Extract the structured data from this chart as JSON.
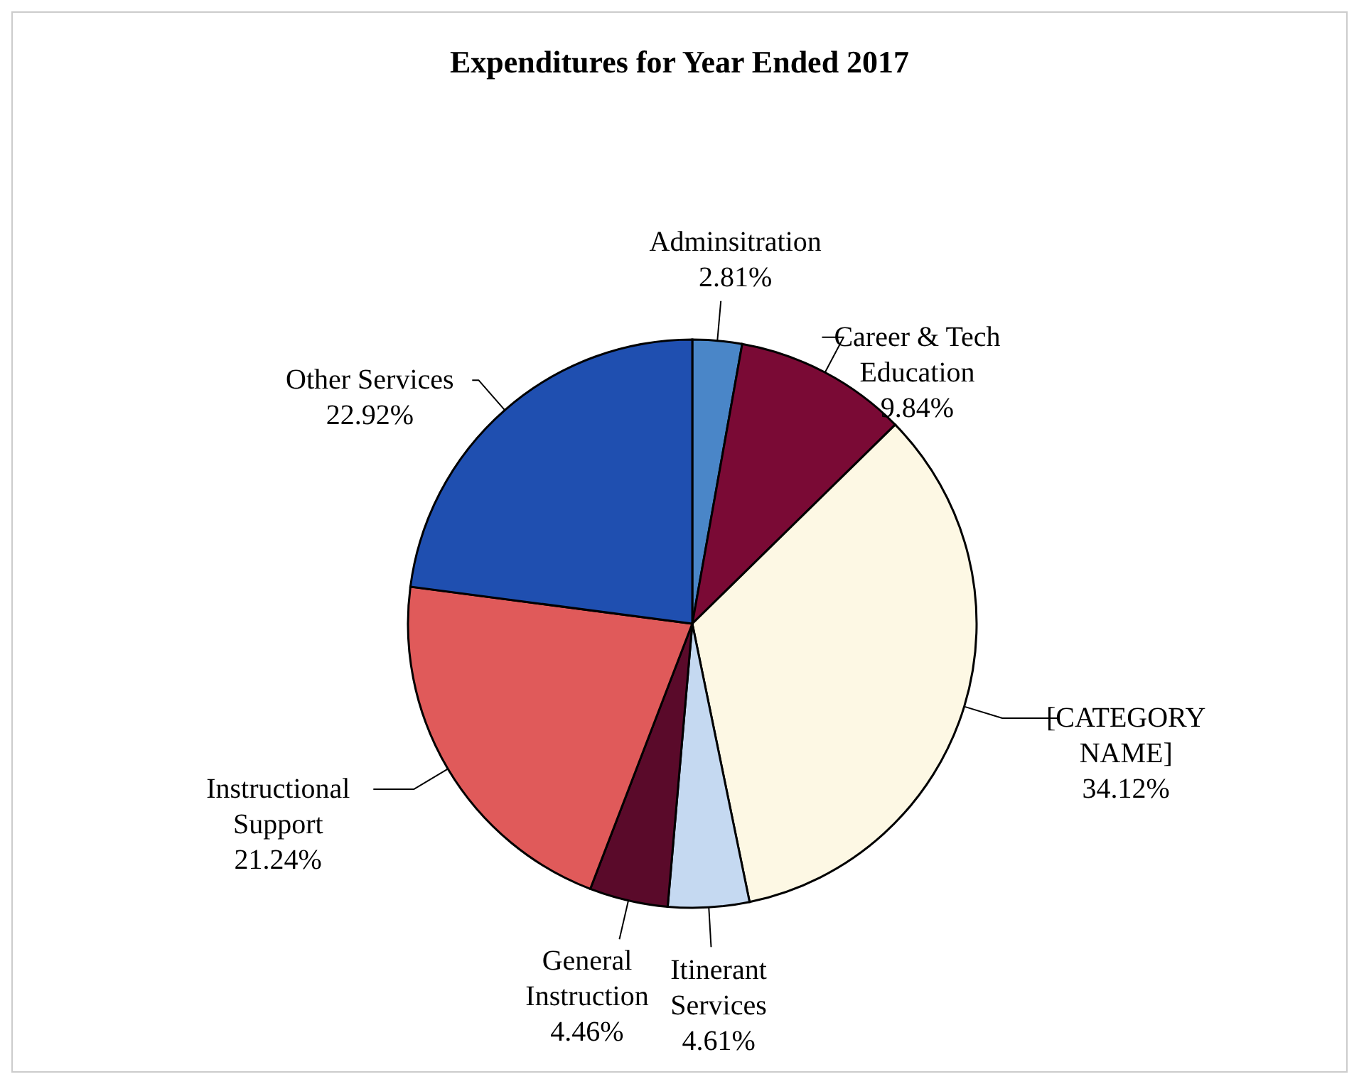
{
  "chart_data": {
    "type": "pie",
    "title": "Expenditures for Year Ended 2017",
    "categories": [
      "Adminsitration",
      "Career & Tech Education",
      "[CATEGORY NAME]",
      "Itinerant Services",
      "General Instruction",
      "Instructional Support",
      "Other Services"
    ],
    "values": [
      2.81,
      9.84,
      34.12,
      4.61,
      4.46,
      21.24,
      22.92
    ],
    "colors": [
      "#4a86c8",
      "#7a0a35",
      "#fdf8e4",
      "#c5d9f1",
      "#5a0a2a",
      "#e05a5a",
      "#1f4fb0"
    ],
    "value_labels": [
      "2.81%",
      "9.84%",
      "34.12%",
      "4.61%",
      "4.46%",
      "21.24%",
      "22.92%"
    ]
  }
}
